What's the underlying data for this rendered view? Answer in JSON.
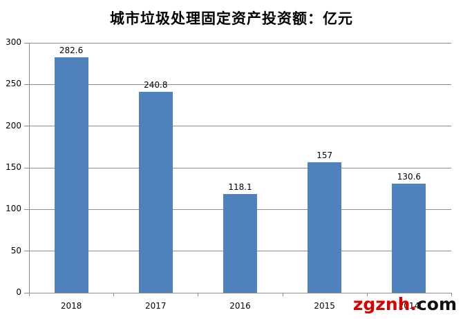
{
  "title": "城市垃圾处理固定资产投资额：亿元",
  "watermark": {
    "red_part": "zgznh.",
    "black_part": "com"
  },
  "colors": {
    "bar": "#4F81BD",
    "gridline": "#8C8C8C",
    "axis": "#8C8C8C",
    "text": "#000000",
    "watermark_red": "#DD0000",
    "watermark_black": "#111111",
    "background": "#FFFFFF"
  },
  "chart_data": {
    "type": "bar",
    "title": "城市垃圾处理固定资产投资额：亿元",
    "categories": [
      "2018",
      "2017",
      "2016",
      "2015",
      "2014"
    ],
    "values": [
      282.6,
      240.8,
      118.1,
      157,
      130.6
    ],
    "value_labels": [
      "282.6",
      "240.8",
      "118.1",
      "157",
      "130.6"
    ],
    "xlabel": "",
    "ylabel": "",
    "ylim": [
      0,
      300
    ],
    "yticks": [
      0,
      50,
      100,
      150,
      200,
      250,
      300
    ],
    "grid": true,
    "legend": false
  }
}
